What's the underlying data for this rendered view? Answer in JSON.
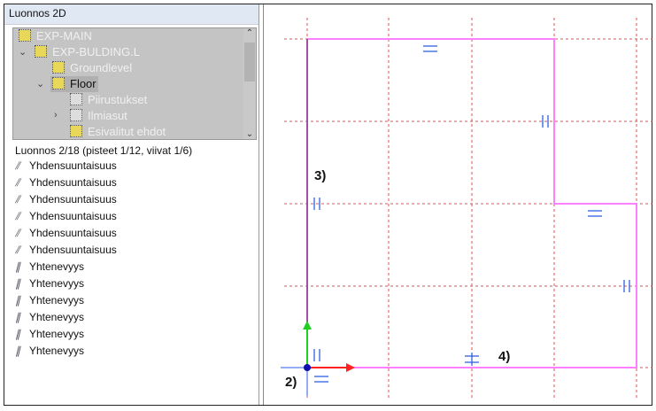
{
  "panel": {
    "title": "Luonnos 2D",
    "tree": [
      {
        "label": "EXP-MAIN",
        "expanded": null
      },
      {
        "label": "EXP-BULDING.L",
        "expanded": true
      },
      {
        "label": "Groundlevel",
        "expanded": null
      },
      {
        "label": "Floor",
        "expanded": true,
        "selected": true
      },
      {
        "label": "Piirustukset",
        "expanded": null
      },
      {
        "label": "Ilmiasut",
        "expanded": false
      },
      {
        "label": "Esivalitut ehdot",
        "expanded": null
      }
    ],
    "status": "Luonnos 2/18 (pisteet 1/12, viivat 1/6)",
    "constraints": [
      "Yhdensuuntaisuus",
      "Yhdensuuntaisuus",
      "Yhdensuuntaisuus",
      "Yhdensuuntaisuus",
      "Yhdensuuntaisuus",
      "Yhdensuuntaisuus",
      "Yhtenevyys",
      "Yhtenevyys",
      "Yhtenevyys",
      "Yhtenevyys",
      "Yhtenevyys",
      "Yhtenevyys"
    ]
  },
  "canvas": {
    "annotations": {
      "a2": "2)",
      "a3": "3)",
      "a4": "4)"
    },
    "colors": {
      "shape": "#ff80ff",
      "grid": "#e05050",
      "x_axis": "#ff2020",
      "y_axis": "#20d020",
      "constraint": "#3060e0"
    }
  }
}
